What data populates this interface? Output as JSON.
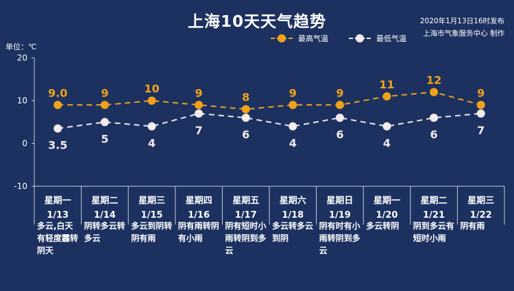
{
  "header": {
    "title": "上海10天天气趋势",
    "publish_line1": "2020年1月13日16时发布",
    "publish_line2": "上海市气象服务中心 制作",
    "unit": "单位：℃"
  },
  "legend": {
    "high_label": "最高气温",
    "low_label": "最低气温"
  },
  "colors": {
    "background": "#1c3160",
    "high": "#f0a21a",
    "low": "#f2ecec",
    "grid": "#c7cdd8"
  },
  "chart_data": {
    "type": "line",
    "title": "上海10天天气趋势",
    "ylabel": "单位：℃",
    "ylim": [
      -10,
      20
    ],
    "yticks": [
      "20",
      "10",
      "0",
      "-10"
    ],
    "legend_position": "top-right",
    "categories": [
      "1/13",
      "1/14",
      "1/15",
      "1/16",
      "1/17",
      "1/18",
      "1/19",
      "1/20",
      "1/21",
      "1/22"
    ],
    "weekdays": [
      "星期一",
      "星期二",
      "星期三",
      "星期四",
      "星期五",
      "星期六",
      "星期日",
      "星期一",
      "星期二",
      "星期三"
    ],
    "series": [
      {
        "name": "最高气温",
        "values": [
          9.0,
          9,
          10,
          9,
          8,
          9,
          9,
          11,
          12,
          9
        ],
        "labels": [
          "9.0",
          "9",
          "10",
          "9",
          "8",
          "9",
          "9",
          "11",
          "12",
          "9"
        ]
      },
      {
        "name": "最低气温",
        "values": [
          3.5,
          5,
          4,
          7,
          6,
          4,
          6,
          4,
          6,
          7
        ],
        "labels": [
          "3.5",
          "5",
          "4",
          "7",
          "6",
          "4",
          "6",
          "4",
          "6",
          "7"
        ]
      }
    ],
    "weather": [
      "多云,白天有轻度霾转阴天",
      "阴转多云转多云",
      "多云到阴转阴有雨",
      "阴有雨转阴有小雨",
      "阴有短时小雨转阴到多云",
      "多云转多云到阴",
      "阴有时有小雨转阴到多云",
      "多云转阴",
      "阴到多云有短时小雨",
      "阴有雨"
    ]
  }
}
